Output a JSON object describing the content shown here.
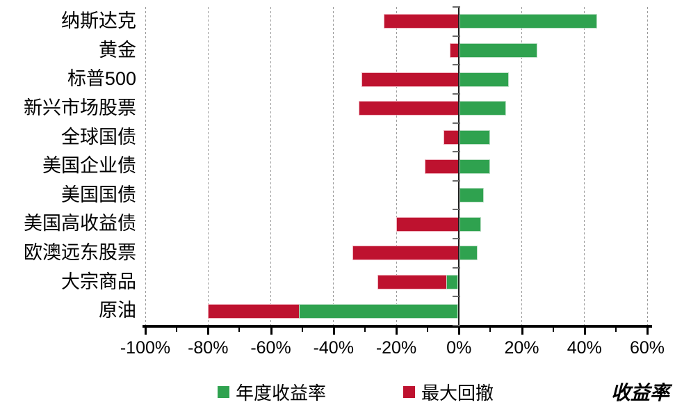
{
  "chart_data": {
    "type": "bar",
    "orientation": "horizontal-diverging",
    "title": "",
    "xlabel": "收益率",
    "xlim": [
      -100,
      60
    ],
    "grid": "dashed-vertical-major",
    "legend_position": "bottom",
    "categories": [
      "纳斯达克",
      "黄金",
      "标普500",
      "新兴市场股票",
      "全球国债",
      "美国企业债",
      "美国国债",
      "美国高收益债",
      "欧澳远东股票",
      "大宗商品",
      "原油"
    ],
    "series": [
      {
        "name": "年度收益率",
        "color": "#2FA24F",
        "values": [
          44,
          25,
          16,
          15,
          10,
          10,
          8,
          7,
          6,
          -4,
          -51
        ]
      },
      {
        "name": "最大回撤",
        "color": "#BE122F",
        "values": [
          -24,
          -3,
          -31,
          -32,
          -5,
          -11,
          0,
          -20,
          -34,
          -26,
          -80
        ]
      }
    ],
    "x_major_ticks": [
      {
        "value": -100,
        "label": "-100%"
      },
      {
        "value": -80,
        "label": "-80%"
      },
      {
        "value": -60,
        "label": "-60%"
      },
      {
        "value": -40,
        "label": "-40%"
      },
      {
        "value": -20,
        "label": "-20%"
      },
      {
        "value": 0,
        "label": "0%"
      },
      {
        "value": 20,
        "label": "20%"
      },
      {
        "value": 40,
        "label": "40%"
      },
      {
        "value": 60,
        "label": "60%"
      }
    ],
    "x_minor_step": 10
  }
}
